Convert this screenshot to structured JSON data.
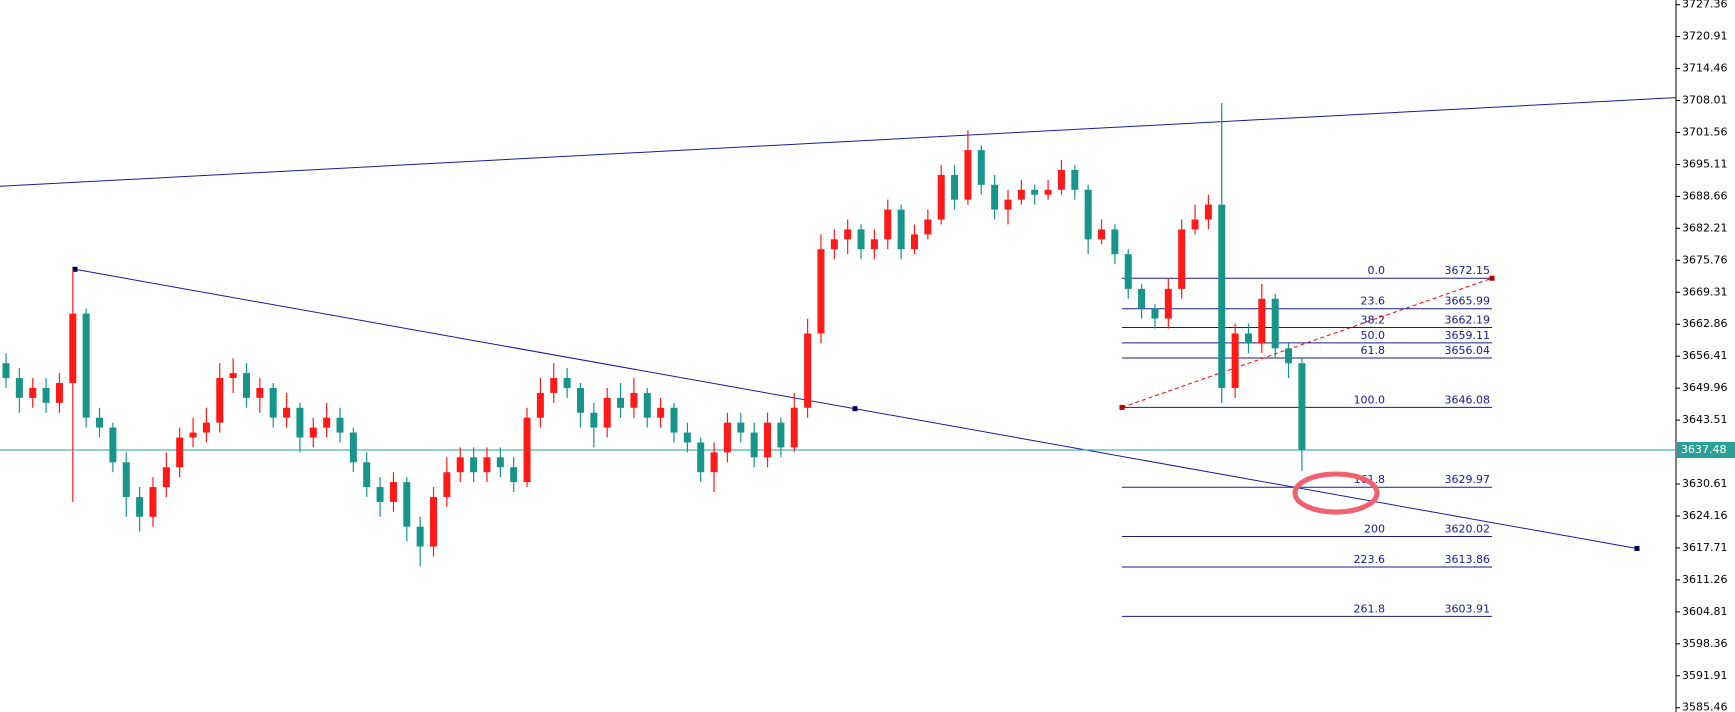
{
  "chart_data": {
    "type": "candlestick",
    "ylim": [
      3584.6,
      3728.3
    ],
    "yticks": [
      3727.36,
      3720.91,
      3714.46,
      3708.01,
      3701.56,
      3695.11,
      3688.66,
      3682.21,
      3675.76,
      3669.31,
      3662.86,
      3656.41,
      3649.96,
      3643.51,
      3630.61,
      3624.16,
      3617.71,
      3611.26,
      3604.81,
      3598.36,
      3591.91,
      3585.46
    ],
    "up_color": "#ff1a1a",
    "down_color": "#17958a",
    "open": [
      3655,
      3652,
      3648,
      3650,
      3647,
      3651,
      3665,
      3644,
      3642,
      3635,
      3628,
      3624,
      3630,
      3634,
      3640,
      3641,
      3643,
      3652,
      3653,
      3648,
      3650,
      3644,
      3646,
      3640,
      3642,
      3644,
      3641,
      3635,
      3630,
      3627,
      3631,
      3622,
      3618,
      3628,
      3633,
      3636,
      3633,
      3636,
      3634,
      3631,
      3644,
      3649,
      3652,
      3650,
      3645,
      3642,
      3648,
      3646,
      3649,
      3644,
      3646,
      3641,
      3639,
      3633,
      3637,
      3643,
      3641,
      3636,
      3643,
      3638,
      3646,
      3661,
      3678,
      3680,
      3682,
      3678,
      3680,
      3686,
      3678,
      3681,
      3684,
      3693,
      3688,
      3698,
      3691,
      3686,
      3688,
      3690,
      3689,
      3690,
      3694,
      3690,
      3680,
      3682,
      3677,
      3670,
      3666,
      3664,
      3670,
      3682,
      3684,
      3687,
      3650,
      3661,
      3659,
      3668,
      3658,
      3655
    ],
    "high": [
      3657,
      3654,
      3652,
      3652,
      3653,
      3674,
      3666,
      3646,
      3643,
      3637,
      3630,
      3632,
      3637,
      3642,
      3644,
      3646,
      3655,
      3656,
      3655,
      3652,
      3651,
      3649,
      3647,
      3644,
      3647,
      3646,
      3642,
      3637,
      3632,
      3633,
      3632,
      3624,
      3630,
      3636,
      3638,
      3638,
      3638,
      3638,
      3636,
      3646,
      3652,
      3655,
      3654,
      3651,
      3647,
      3650,
      3651,
      3652,
      3650,
      3648,
      3647,
      3643,
      3640,
      3639,
      3645,
      3645,
      3643,
      3645,
      3644,
      3649,
      3664,
      3681,
      3682,
      3684,
      3683,
      3682,
      3688,
      3687,
      3683,
      3686,
      3695,
      3695,
      3702,
      3699,
      3693,
      3690,
      3692,
      3691,
      3692,
      3696,
      3695,
      3691,
      3684,
      3683,
      3678,
      3671,
      3667,
      3672,
      3684,
      3687,
      3689,
      3707.5,
      3663,
      3663,
      3671,
      3669,
      3659,
      3656
    ],
    "low": [
      3650,
      3645,
      3646,
      3645,
      3645,
      3627,
      3642,
      3640,
      3633,
      3624,
      3621,
      3622,
      3628,
      3632,
      3638,
      3639,
      3641,
      3649,
      3646,
      3645,
      3642,
      3642,
      3637,
      3638,
      3640,
      3639,
      3633,
      3628,
      3624,
      3625,
      3619,
      3614,
      3616,
      3626,
      3631,
      3631,
      3631,
      3632,
      3629,
      3630,
      3642,
      3647,
      3648,
      3642,
      3638,
      3640,
      3644,
      3644,
      3642,
      3642,
      3639,
      3637,
      3631,
      3629,
      3635,
      3639,
      3634,
      3634,
      3636,
      3637,
      3644,
      3659,
      3676,
      3677,
      3676,
      3676,
      3678,
      3676,
      3677,
      3680,
      3683,
      3686,
      3687,
      3689,
      3684,
      3683,
      3687,
      3687,
      3688,
      3689,
      3688,
      3677,
      3679,
      3675,
      3668,
      3664,
      3662,
      3662,
      3668,
      3681,
      3682,
      3647,
      3648,
      3657,
      3657,
      3656,
      3652,
      3633.3
    ],
    "close": [
      3652,
      3648,
      3650,
      3647,
      3651,
      3665,
      3644,
      3642,
      3635,
      3628,
      3624,
      3630,
      3634,
      3640,
      3641,
      3643,
      3652,
      3653,
      3648,
      3650,
      3644,
      3646,
      3640,
      3642,
      3644,
      3641,
      3635,
      3630,
      3627,
      3631,
      3622,
      3618,
      3628,
      3633,
      3636,
      3633,
      3636,
      3634,
      3631,
      3644,
      3649,
      3652,
      3650,
      3645,
      3642,
      3648,
      3646,
      3649,
      3644,
      3646,
      3641,
      3639,
      3633,
      3637,
      3643,
      3641,
      3636,
      3643,
      3638,
      3646,
      3661,
      3678,
      3680,
      3682,
      3678,
      3680,
      3686,
      3678,
      3681,
      3684,
      3693,
      3688,
      3698,
      3691,
      3686,
      3688,
      3690,
      3689,
      3690,
      3694,
      3690,
      3680,
      3682,
      3677,
      3670,
      3666,
      3664,
      3670,
      3682,
      3684,
      3687,
      3650,
      3661,
      3659,
      3668,
      3658,
      3655,
      3637.48
    ],
    "last_price": 3637.48,
    "last_price_color": "#2aa198",
    "trendline_color": "#1a1aa0",
    "upper_trendline": [
      3690.7,
      3708.6
    ],
    "lower_trendline": [
      3673.95,
      3617.6
    ],
    "fibonacci": {
      "color": "#1a1a8c",
      "levels": [
        {
          "label": "0.0",
          "value": 3672.15
        },
        {
          "label": "23.6",
          "value": 3665.99
        },
        {
          "label": "38.2",
          "value": 3662.19
        },
        {
          "label": "50.0",
          "value": 3659.11
        },
        {
          "label": "61.8",
          "value": 3656.04
        },
        {
          "label": "100.0",
          "value": 3646.08
        },
        {
          "label": "161.8",
          "value": 3629.97
        },
        {
          "label": "200",
          "value": 3620.02
        },
        {
          "label": "223.6",
          "value": 3613.86
        },
        {
          "label": "261.8",
          "value": 3603.91
        }
      ]
    }
  }
}
